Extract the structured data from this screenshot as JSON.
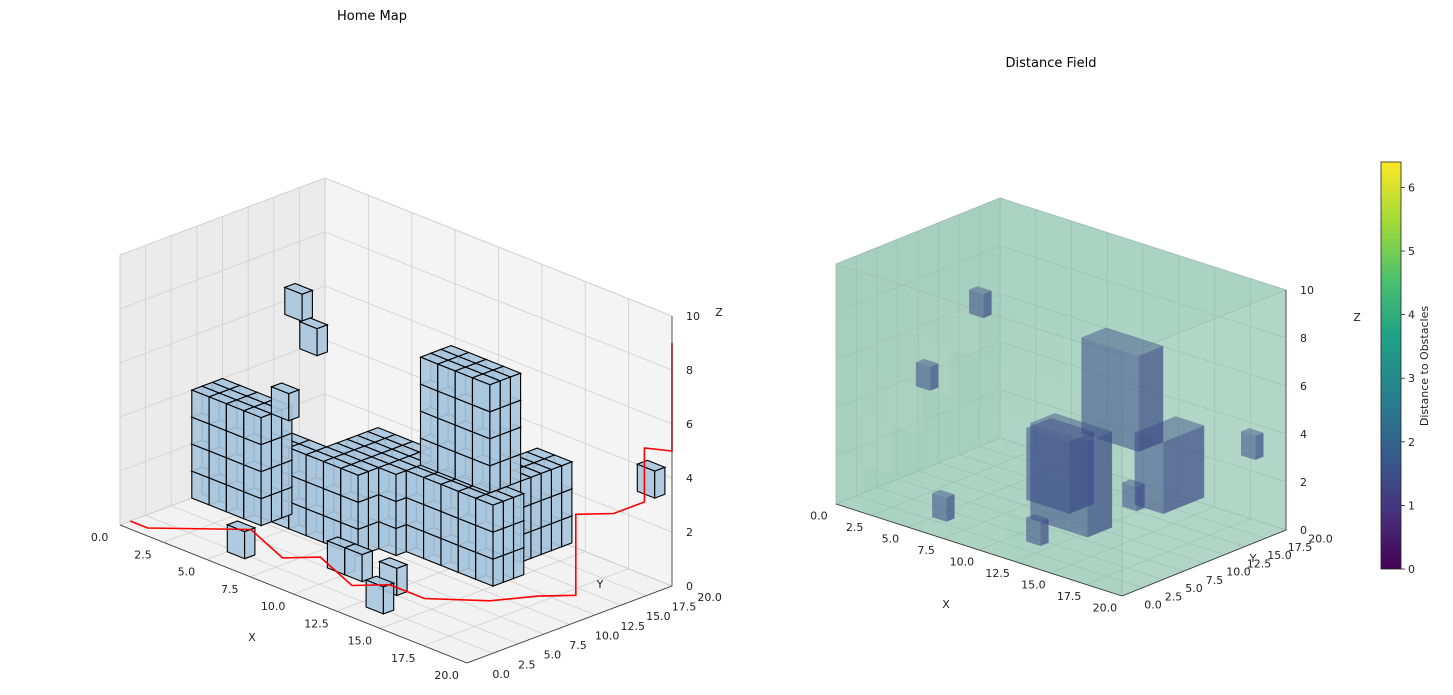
{
  "chart_data": [
    {
      "type": "voxel-3d",
      "title": "Home Map",
      "xlabel": "X",
      "ylabel": "Y",
      "zlabel": "Z",
      "xlim": [
        0,
        20
      ],
      "ylim": [
        0,
        20
      ],
      "zlim": [
        0,
        10
      ],
      "x_ticks": [
        "0.0",
        "2.5",
        "5.0",
        "7.5",
        "10.0",
        "12.5",
        "15.0",
        "17.5",
        "20.0"
      ],
      "y_ticks": [
        "0.0",
        "2.5",
        "5.0",
        "7.5",
        "10.0",
        "12.5",
        "15.0",
        "17.5",
        "20.0"
      ],
      "z_ticks": [
        "0",
        "2",
        "4",
        "6",
        "8",
        "10"
      ],
      "grid": true,
      "colors": {
        "voxel_face": "#a8c6de",
        "voxel_edge": "#000000",
        "path": "#ff0000",
        "pane": "#f2f2f2"
      },
      "blocks": [
        {
          "x": [
            0,
            4
          ],
          "y": [
            7,
            10
          ],
          "z": [
            0,
            4
          ]
        },
        {
          "x": [
            4,
            9
          ],
          "y": [
            8,
            10
          ],
          "z": [
            0,
            3
          ]
        },
        {
          "x": [
            6,
            10
          ],
          "y": [
            10,
            15
          ],
          "z": [
            0,
            3
          ]
        },
        {
          "x": [
            10,
            15
          ],
          "y": [
            11,
            14
          ],
          "z": [
            0,
            3
          ]
        },
        {
          "x": [
            14,
            16
          ],
          "y": [
            12,
            17
          ],
          "z": [
            1,
            4
          ]
        },
        {
          "x": [
            12,
            16
          ],
          "y": [
            9,
            12
          ],
          "z": [
            4,
            8
          ]
        },
        {
          "x": [
            9,
            11
          ],
          "y": [
            5,
            6
          ],
          "z": [
            0,
            1
          ]
        },
        {
          "x": [
            12,
            13
          ],
          "y": [
            5,
            6
          ],
          "z": [
            0,
            1
          ]
        },
        {
          "x": [
            3,
            4
          ],
          "y": [
            11,
            12
          ],
          "z": [
            7,
            8
          ]
        },
        {
          "x": [
            8,
            9
          ],
          "y": [
            4,
            5
          ],
          "z": [
            8,
            9
          ]
        },
        {
          "x": [
            13,
            14
          ],
          "y": [
            2,
            3
          ],
          "z": [
            0,
            1
          ]
        },
        {
          "x": [
            18,
            19
          ],
          "y": [
            20,
            21
          ],
          "z": [
            3,
            4
          ]
        },
        {
          "x": [
            5,
            6
          ],
          "y": [
            2,
            3
          ],
          "z": [
            0,
            1
          ]
        },
        {
          "x": [
            15,
            16
          ],
          "y": [
            9,
            10
          ],
          "z": [
            7,
            8
          ]
        },
        {
          "x": [
            4,
            5
          ],
          "y": [
            8,
            9
          ],
          "z": [
            4,
            5
          ]
        },
        {
          "x": [
            11,
            12
          ],
          "y": [
            14,
            15
          ],
          "z": [
            3,
            4
          ]
        }
      ],
      "path": [
        [
          0,
          1,
          0
        ],
        [
          1,
          1,
          0
        ],
        [
          4,
          6,
          0
        ],
        [
          7,
          4,
          0
        ],
        [
          8,
          6,
          0
        ],
        [
          11,
          4,
          0
        ],
        [
          12,
          6,
          0
        ],
        [
          14,
          6,
          0
        ],
        [
          16,
          9,
          0
        ],
        [
          17,
          12,
          0
        ],
        [
          18,
          14,
          0
        ],
        [
          18,
          14,
          3
        ],
        [
          19,
          16,
          3
        ],
        [
          19,
          19,
          3
        ],
        [
          19,
          19,
          5
        ],
        [
          20,
          20,
          5
        ],
        [
          20,
          20,
          9
        ]
      ]
    },
    {
      "type": "volume-3d",
      "title": "Distance Field",
      "xlabel": "X",
      "ylabel": "Y",
      "zlabel": "Z",
      "xlim": [
        0,
        20
      ],
      "ylim": [
        0,
        20
      ],
      "zlim": [
        0,
        10
      ],
      "x_ticks": [
        "0.0",
        "2.5",
        "5.0",
        "7.5",
        "10.0",
        "12.5",
        "15.0",
        "17.5",
        "20.0"
      ],
      "y_ticks": [
        "0.0",
        "2.5",
        "5.0",
        "7.5",
        "10.0",
        "12.5",
        "15.0",
        "17.5",
        "20.0"
      ],
      "z_ticks": [
        "0",
        "2",
        "4",
        "6",
        "8",
        "10"
      ],
      "grid": true,
      "colorbar": {
        "label": "Distance to Obstacles",
        "min": 0,
        "max": 6.4,
        "ticks": [
          "0",
          "1",
          "2",
          "3",
          "4",
          "5",
          "6"
        ],
        "colormap": "viridis"
      },
      "colors": {
        "volume": "#6fb89a",
        "obstacle": "#3a4a86",
        "pane": "#f2f2f2"
      }
    }
  ]
}
